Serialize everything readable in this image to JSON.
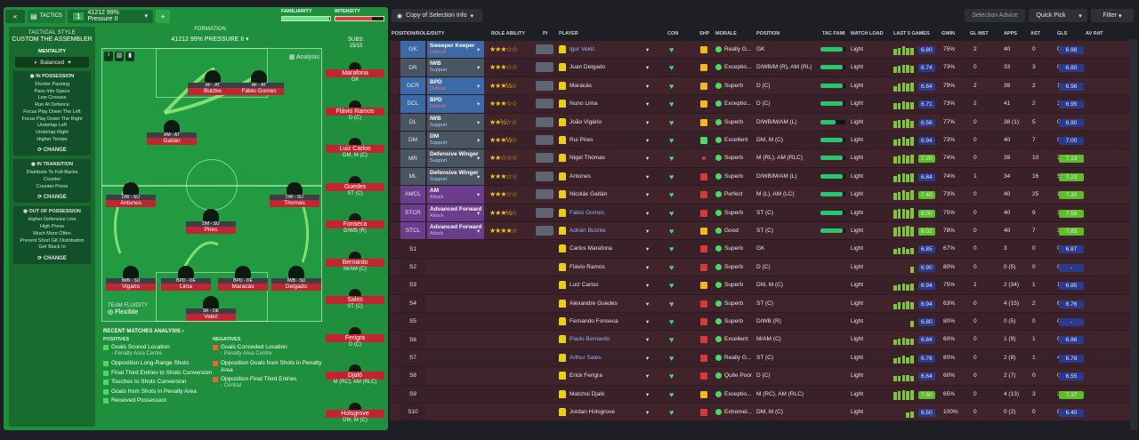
{
  "topbar": {
    "back_icon": "double-chevron-left-icon",
    "tactics_label": "TACTICS",
    "tactic_number": "1",
    "tactic_name": "41212 99% Pressure II",
    "add_icon": "plus-icon",
    "familiarity_label": "FAMILIARITY",
    "intensity_label": "INTENSITY",
    "familiarity_level": 0.99,
    "intensity_level": 0.75
  },
  "style_panel": {
    "header": "TACTICAL STYLE",
    "title": "CUSTOM THE ASSEMBLER",
    "mentality_label": "MENTALITY",
    "mentality_value": "Balanced",
    "possession": {
      "title": "IN POSSESSION",
      "items": [
        "Shorter Passing",
        "Pass Into Space",
        "Low Crosses",
        "Run At Defence",
        "Focus Play Down The Left",
        "Focus Play Down The Right",
        "Underlap Left",
        "Underlap Right",
        "Higher Tempo"
      ],
      "change": "CHANGE"
    },
    "transition": {
      "title": "IN TRANSITION",
      "items": [
        "Distribute To Full-Backs",
        "Counter",
        "Counter-Press"
      ],
      "change": "CHANGE"
    },
    "out_possession": {
      "title": "OUT OF POSSESSION",
      "items": [
        "Higher Defensive Line",
        "High Press",
        "Much More Often",
        "Prevent Short GK Distribution",
        "Get Stuck In"
      ],
      "change": "CHANGE"
    }
  },
  "formation": {
    "label": "FORMATION",
    "name": "41212 99% PRESSURE II",
    "analysis_label": "Analysis",
    "team_fluidity_label": "TEAM FLUIDITY",
    "team_fluidity_value": "Flexible",
    "players": [
      {
        "role": "AF - AT",
        "name": "Butzke"
      },
      {
        "role": "AF - AT",
        "name": "Fábio Gomes"
      },
      {
        "role": "AM - AT",
        "name": "Gaitán"
      },
      {
        "role": "DW - SU",
        "name": "Antunes"
      },
      {
        "role": "DW - SU",
        "name": "Thomas"
      },
      {
        "role": "DM - SU",
        "name": "Pires"
      },
      {
        "role": "IWB - SU",
        "name": "Vigário"
      },
      {
        "role": "BPD - DE",
        "name": "Lima"
      },
      {
        "role": "BPD - DE",
        "name": "Maracás"
      },
      {
        "role": "IWB - SU",
        "name": "Delgado"
      },
      {
        "role": "SK - DE",
        "name": "Vekić"
      }
    ]
  },
  "subs": {
    "title": "SUBS:",
    "count": "15/15",
    "list": [
      {
        "name": "Marafona",
        "pos": "GK"
      },
      {
        "name": "Flávio Ramos",
        "pos": "D (C)"
      },
      {
        "name": "Luiz Carlos",
        "pos": "DM, M (C)"
      },
      {
        "name": "Guedes",
        "pos": "ST (C)"
      },
      {
        "name": "Fonseca",
        "pos": "D/WB (R)"
      },
      {
        "name": "Bernardo",
        "pos": "M/AM (C)"
      },
      {
        "name": "Sales",
        "pos": "ST (C)"
      },
      {
        "name": "Ferigra",
        "pos": "D (C)"
      },
      {
        "name": "Djaló",
        "pos": "M (RC), AM (RLC)"
      },
      {
        "name": "Holsgrove",
        "pos": "DM, M (C)"
      }
    ]
  },
  "recent": {
    "title": "RECENT MATCHES ANALYSIS",
    "positives_label": "POSITIVES",
    "negatives_label": "NEGATIVES",
    "positives": [
      {
        "text": "Goals Scored Location",
        "sub": "- Penalty Area Centre"
      },
      {
        "text": "Opposition Long-Range Shots",
        "sub": ""
      },
      {
        "text": "Final Third Entries to Shots Conversion",
        "sub": ""
      },
      {
        "text": "Touches to Shots Conversion",
        "sub": ""
      },
      {
        "text": "Goals from Shots in Penalty Area",
        "sub": ""
      },
      {
        "text": "Received Possession",
        "sub": ""
      }
    ],
    "negatives": [
      {
        "text": "Goals Conceded Location",
        "sub": "- Penalty Area Centre"
      },
      {
        "text": "Opposition Goals from Shots in Penalty Area",
        "sub": ""
      },
      {
        "text": "Opposition Final Third Entries",
        "sub": "- Central"
      }
    ]
  },
  "right_top": {
    "copy_label": "Copy of Selection Info",
    "selection_advice": "Selection Advice",
    "quick_pick": "Quick Pick",
    "filter": "Filter"
  },
  "table": {
    "headers": [
      "POSITION/ROLE/DUTY",
      "ROLE ABILITY",
      "PI",
      "PLAYER",
      "CON",
      "SHP",
      "MORALE",
      "POSITION",
      "TAC FAMI",
      "MATCH LOAD",
      "LAST 5 GAMES",
      "GWIN",
      "GL MST",
      "APPS",
      "AST",
      "GLS",
      "AV RAT"
    ],
    "rows": [
      {
        "pos": "GK",
        "role": "Sweeper Keeper",
        "duty": "Defend",
        "stars": "★★★☆☆",
        "player": "Igor Vekić",
        "link": true,
        "shp": "y",
        "mor": "Really G...",
        "posn": "GK",
        "tac": 0.9,
        "load": "Light",
        "form": [
          0.6,
          0.7,
          0.8,
          0.7,
          0.7
        ],
        "rat": "6.80",
        "gwin": "75%",
        "glmst": "2",
        "apps": "40",
        "ast": "0",
        "gls": "0",
        "av": "6.98",
        "avc": "#2b3a8f"
      },
      {
        "pos": "DR",
        "role": "IWB",
        "duty": "Support",
        "stars": "★★★☆☆",
        "player": "Juan Delgado",
        "link": false,
        "shp": "y",
        "mor": "Exceptio...",
        "posn": "D/WB/M (R), AM (RL)",
        "tac": 0.9,
        "load": "Light",
        "form": [
          0.6,
          0.7,
          0.8,
          0.8,
          0.7
        ],
        "rat": "6.74",
        "gwin": "73%",
        "glmst": "0",
        "apps": "33",
        "ast": "3",
        "gls": "0",
        "av": "6.80",
        "avc": "#2b3a8f"
      },
      {
        "pos": "DCR",
        "role": "BPD",
        "duty": "Defend",
        "stars": "★★★½☆",
        "player": "Maracás",
        "link": false,
        "shp": "y",
        "mor": "Superb",
        "posn": "D (C)",
        "tac": 0.9,
        "load": "Light",
        "form": [
          0.5,
          0.7,
          0.8,
          0.7,
          0.8
        ],
        "rat": "6.64",
        "gwin": "79%",
        "glmst": "2",
        "apps": "39",
        "ast": "2",
        "gls": "11",
        "av": "6.96",
        "avc": "#2b3a8f"
      },
      {
        "pos": "DCL",
        "role": "BPD",
        "duty": "Defend",
        "stars": "★★★☆☆",
        "player": "Nuno Lima",
        "link": false,
        "shp": "y",
        "mor": "Exceptio...",
        "posn": "D (C)",
        "tac": 0.9,
        "load": "Light",
        "form": [
          0.6,
          0.6,
          0.8,
          0.7,
          0.7
        ],
        "rat": "6.71",
        "gwin": "73%",
        "glmst": "2",
        "apps": "41",
        "ast": "2",
        "gls": "3",
        "av": "6.95",
        "avc": "#2b3a8f"
      },
      {
        "pos": "DL",
        "role": "IWB",
        "duty": "Support",
        "stars": "★★½☆☆",
        "player": "João Vigário",
        "link": false,
        "shp": "y",
        "mor": "Superb",
        "posn": "D/WB/M/AM (L)",
        "tac": 0.6,
        "load": "Light",
        "form": [
          0.6,
          0.7,
          0.7,
          0.8,
          0.6
        ],
        "rat": "6.56",
        "gwin": "77%",
        "glmst": "0",
        "apps": "38 (1)",
        "ast": "5",
        "gls": "0",
        "av": "6.90",
        "avc": "#2b3a8f"
      },
      {
        "pos": "DM",
        "role": "DM",
        "duty": "Support",
        "stars": "★★★½☆",
        "player": "Rui Pires",
        "link": false,
        "shp": "g",
        "mor": "Excellent",
        "posn": "DM, M (C)",
        "tac": 0.9,
        "load": "Light",
        "form": [
          0.6,
          0.7,
          0.8,
          0.7,
          0.8
        ],
        "rat": "6.94",
        "gwin": "73%",
        "glmst": "0",
        "apps": "40",
        "ast": "7",
        "gls": "0",
        "av": "7.00",
        "avc": "#2b3a8f"
      },
      {
        "pos": "MR",
        "role": "Defensive Winger",
        "duty": "Support",
        "stars": "★★☆☆☆",
        "player": "Nigel Thomas",
        "link": false,
        "shp": "dot",
        "mor": "Superb",
        "posn": "M (RL), AM (RLC)",
        "tac": 0.9,
        "load": "Light",
        "form": [
          0.7,
          0.8,
          0.9,
          0.8,
          0.9
        ],
        "rat": "7.20",
        "gwin": "74%",
        "glmst": "0",
        "apps": "39",
        "ast": "10",
        "gls": "2",
        "av": "7.13",
        "avc": "#5cbf2a"
      },
      {
        "pos": "ML",
        "role": "Defensive Winger",
        "duty": "Support",
        "stars": "★★★☆☆",
        "player": "Antunes",
        "link": false,
        "shp": "r",
        "mor": "Superb",
        "posn": "D/WB/M/AM (L)",
        "tac": 0.9,
        "load": "Light",
        "form": [
          0.6,
          0.7,
          0.8,
          0.7,
          0.8
        ],
        "rat": "6.84",
        "gwin": "74%",
        "glmst": "1",
        "apps": "34",
        "ast": "16",
        "gls": "5",
        "av": "7.23",
        "avc": "#5cbf2a"
      },
      {
        "pos": "AMCL",
        "role": "AM",
        "duty": "Attack",
        "stars": "★★★☆☆",
        "player": "Nicolás Gaitán",
        "link": false,
        "shp": "r",
        "mor": "Perfect",
        "posn": "M (L), AM (LC)",
        "tac": 0.9,
        "load": "Light",
        "form": [
          0.7,
          0.8,
          0.9,
          0.8,
          0.9
        ],
        "rat": "7.40",
        "gwin": "73%",
        "glmst": "0",
        "apps": "40",
        "ast": "25",
        "gls": "13",
        "av": "7.32",
        "avc": "#5cbf2a"
      },
      {
        "pos": "STCR",
        "role": "Advanced Forward",
        "duty": "Attack",
        "stars": "★★★½☆",
        "player": "Fábio Gomes",
        "link": true,
        "shp": "r",
        "mor": "Superb",
        "posn": "ST (C)",
        "tac": 0.9,
        "load": "Light",
        "form": [
          0.8,
          0.9,
          0.9,
          0.8,
          1.0
        ],
        "rat": "8.00",
        "gwin": "75%",
        "glmst": "0",
        "apps": "40",
        "ast": "9",
        "gls": "30",
        "av": "7.59",
        "avc": "#5cbf2a"
      },
      {
        "pos": "STCL",
        "role": "Advanced Forward",
        "duty": "Attack",
        "stars": "★★★★☆",
        "player": "Adrián Butzke",
        "link": true,
        "shp": "y",
        "mor": "Good",
        "posn": "ST (C)",
        "tac": 0.9,
        "load": "Light",
        "form": [
          0.8,
          0.9,
          0.9,
          1.0,
          0.9
        ],
        "rat": "8.02",
        "gwin": "78%",
        "glmst": "0",
        "apps": "40",
        "ast": "7",
        "gls": "38",
        "av": "7.85",
        "avc": "#5cbf2a"
      },
      {
        "pos": "S1",
        "role": "",
        "duty": "",
        "stars": "",
        "player": "Carlos Marafona",
        "link": false,
        "shp": "r",
        "mor": "Superb",
        "posn": "GK",
        "tac": 0,
        "load": "Light",
        "form": [
          0.5,
          0.6,
          0.7,
          0.5,
          0.6
        ],
        "rat": "6.85",
        "gwin": "67%",
        "glmst": "0",
        "apps": "3",
        "ast": "0",
        "gls": "0",
        "av": "6.87",
        "avc": "#2b3a8f"
      },
      {
        "pos": "S2",
        "role": "",
        "duty": "",
        "stars": "",
        "player": "Flávio Ramos",
        "link": false,
        "shp": "r",
        "mor": "Superb",
        "posn": "D (C)",
        "tac": 0,
        "load": "Light",
        "form": [
          0,
          0,
          0,
          0,
          0.6
        ],
        "rat": "6.90",
        "gwin": "80%",
        "glmst": "0",
        "apps": "0 (5)",
        "ast": "0",
        "gls": "0",
        "av": "-",
        "avc": "#2b3a8f"
      },
      {
        "pos": "S3",
        "role": "",
        "duty": "",
        "stars": "",
        "player": "Luiz Carlos",
        "link": false,
        "shp": "y",
        "mor": "Superb",
        "posn": "DM, M (C)",
        "tac": 0,
        "load": "Light",
        "form": [
          0.5,
          0.6,
          0.7,
          0.6,
          0.7
        ],
        "rat": "6.94",
        "gwin": "75%",
        "glmst": "1",
        "apps": "2 (34)",
        "ast": "1",
        "gls": "1",
        "av": "6.85",
        "avc": "#2b3a8f"
      },
      {
        "pos": "S4",
        "role": "",
        "duty": "",
        "stars": "",
        "player": "Alexandre Guedes",
        "link": false,
        "shp": "r",
        "mor": "Superb",
        "posn": "ST (C)",
        "tac": 0,
        "load": "Light",
        "form": [
          0.5,
          0.6,
          0.6,
          0.7,
          0.6
        ],
        "rat": "6.94",
        "gwin": "63%",
        "glmst": "0",
        "apps": "4 (15)",
        "ast": "2",
        "gls": "6",
        "av": "6.76",
        "avc": "#2b3a8f"
      },
      {
        "pos": "S5",
        "role": "",
        "duty": "",
        "stars": "",
        "player": "Fernando Fonseca",
        "link": false,
        "shp": "r",
        "mor": "Superb",
        "posn": "D/WB (R)",
        "tac": 0,
        "load": "Light",
        "form": [
          0,
          0,
          0,
          0,
          0.6
        ],
        "rat": "6.80",
        "gwin": "80%",
        "glmst": "0",
        "apps": "0 (5)",
        "ast": "0",
        "gls": "0",
        "av": "-",
        "avc": "#2b3a8f"
      },
      {
        "pos": "S6",
        "role": "",
        "duty": "",
        "stars": "",
        "player": "Paulo Bernardo",
        "link": true,
        "shp": "r",
        "mor": "Excellent",
        "posn": "M/AM (C)",
        "tac": 0,
        "load": "Light",
        "form": [
          0.5,
          0.6,
          0.7,
          0.6,
          0.6
        ],
        "rat": "6.84",
        "gwin": "60%",
        "glmst": "0",
        "apps": "1 (9)",
        "ast": "1",
        "gls": "0",
        "av": "6.86",
        "avc": "#2b3a8f"
      },
      {
        "pos": "S7",
        "role": "",
        "duty": "",
        "stars": "",
        "player": "Arthur Sales",
        "link": true,
        "shp": "r",
        "mor": "Really G...",
        "posn": "ST (C)",
        "tac": 0,
        "load": "Light",
        "form": [
          0.5,
          0.6,
          0.7,
          0.6,
          0.7
        ],
        "rat": "6.76",
        "gwin": "80%",
        "glmst": "0",
        "apps": "2 (8)",
        "ast": "1",
        "gls": "4",
        "av": "6.78",
        "avc": "#2b3a8f"
      },
      {
        "pos": "S8",
        "role": "",
        "duty": "",
        "stars": "",
        "player": "Erick Ferigra",
        "link": false,
        "shp": "r",
        "mor": "Quite Poor",
        "posn": "D (C)",
        "tac": 0,
        "load": "Light",
        "form": [
          0.5,
          0.5,
          0.6,
          0.6,
          0.5
        ],
        "rat": "6.64",
        "gwin": "60%",
        "glmst": "0",
        "apps": "2 (7)",
        "ast": "0",
        "gls": "0",
        "av": "6.55",
        "avc": "#2b3a8f"
      },
      {
        "pos": "S9",
        "role": "",
        "duty": "",
        "stars": "",
        "player": "Matchoi Djaló",
        "link": false,
        "shp": "y",
        "mor": "Exceptio...",
        "posn": "M (RC), AM (RLC)",
        "tac": 0,
        "load": "Light",
        "form": [
          0.7,
          0.8,
          0.9,
          0.8,
          0.9
        ],
        "rat": "7.60",
        "gwin": "65%",
        "glmst": "0",
        "apps": "4 (13)",
        "ast": "3",
        "gls": "3",
        "av": "7.37",
        "avc": "#5cbf2a"
      },
      {
        "pos": "S10",
        "role": "",
        "duty": "",
        "stars": "",
        "player": "Jordan Holsgrove",
        "link": false,
        "shp": "r",
        "mor": "Extremel...",
        "posn": "DM, M (C)",
        "tac": 0,
        "load": "Light",
        "form": [
          0,
          0,
          0,
          0.5,
          0.6
        ],
        "rat": "6.50",
        "gwin": "100%",
        "glmst": "0",
        "apps": "0 (2)",
        "ast": "0",
        "gls": "0",
        "av": "6.40",
        "avc": "#2b3a8f"
      }
    ]
  },
  "colors": {
    "pitch": "#229a41",
    "name_tag": "#c22531",
    "link": "#8fb4ff",
    "heart": "#4cd964",
    "accent_green": "#2ca84a"
  }
}
